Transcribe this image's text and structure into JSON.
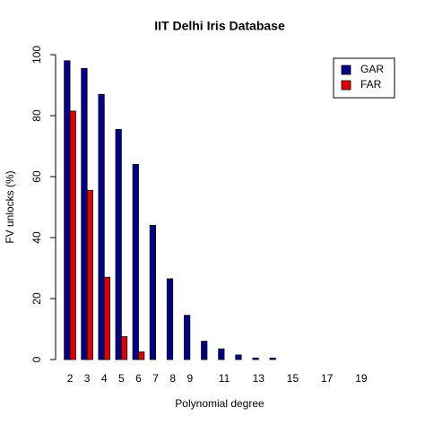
{
  "chart_data": {
    "type": "bar",
    "title": "IIT Delhi Iris Database",
    "x_label": "Polynomial degree",
    "y_label": "FV unlocks (%)",
    "categories": [
      "2",
      "3",
      "4",
      "5",
      "6",
      "7",
      "8",
      "9",
      null,
      "11",
      null,
      "13",
      null,
      "15",
      null,
      "17",
      null,
      "19"
    ],
    "series": [
      {
        "name": "GAR",
        "color": "#00008b",
        "values": [
          98,
          95.5,
          87,
          75.5,
          64,
          44,
          26.5,
          14.5,
          6,
          3.5,
          1.5,
          0.5,
          0.5,
          0,
          0,
          0,
          0,
          0
        ]
      },
      {
        "name": "FAR",
        "color": "#e00000",
        "values": [
          81.5,
          55.5,
          27,
          7.5,
          2.5,
          0,
          0,
          0,
          0,
          0,
          0,
          0,
          0,
          0,
          0,
          0,
          0,
          0
        ]
      }
    ],
    "ylim": [
      0,
      100
    ],
    "yticks": [
      0,
      20,
      40,
      60,
      80,
      100
    ],
    "legend_position": "topright"
  }
}
